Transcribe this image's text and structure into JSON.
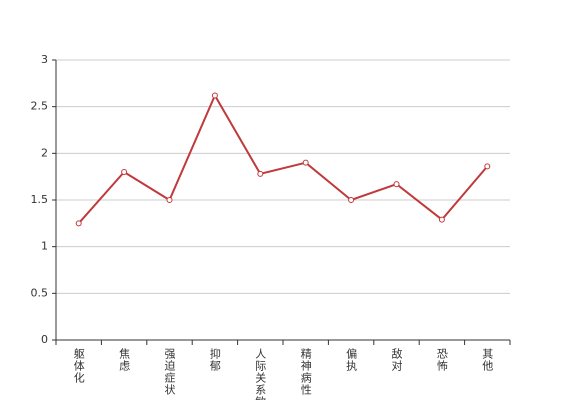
{
  "chart_data": {
    "type": "line",
    "categories": [
      "躯体化",
      "焦虑",
      "强迫症状",
      "抑郁",
      "人际关系敏感",
      "精神病性",
      "偏执",
      "敌对",
      "恐怖",
      "其他"
    ],
    "values": [
      1.25,
      1.8,
      1.5,
      2.62,
      1.78,
      1.9,
      1.5,
      1.67,
      1.29,
      1.86
    ],
    "color": "#c0393b",
    "ylim": [
      0,
      3
    ],
    "yticks": [
      0,
      0.5,
      1,
      1.5,
      2,
      2.5,
      3
    ],
    "grid": true
  }
}
